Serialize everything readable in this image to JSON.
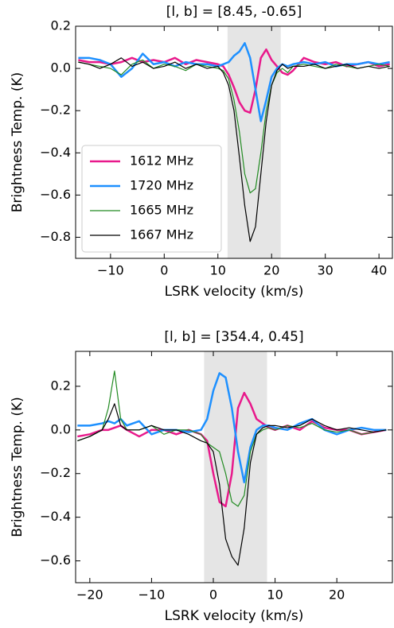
{
  "chart_data": [
    {
      "type": "line",
      "title": "[l, b] = [8.45, -0.65]",
      "x_label": "LSRK velocity (km/s)",
      "y_label": "Brightness Temp. (K)",
      "xlim": [
        -16.5,
        42.5
      ],
      "ylim": [
        -0.9,
        0.2
      ],
      "xticks": [
        {
          "value": -10,
          "label": "−10"
        },
        0,
        10,
        20,
        30,
        40
      ],
      "yticks": [
        {
          "value": -0.8,
          "label": "−0.8"
        },
        {
          "value": -0.6,
          "label": "−0.6"
        },
        {
          "value": -0.4,
          "label": "−0.4"
        },
        {
          "value": -0.2,
          "label": "−0.2"
        },
        {
          "value": 0,
          "label": "0.0"
        },
        0.2
      ],
      "shaded_xrange": [
        11.8,
        21.7
      ],
      "legend": "lower left",
      "x": [
        -16,
        -14,
        -12,
        -10,
        -8,
        -6,
        -4,
        -2,
        0,
        2,
        4,
        6,
        8,
        10,
        11,
        12,
        13,
        14,
        15,
        16,
        17,
        18,
        19,
        20,
        21,
        22,
        23,
        24,
        26,
        28,
        30,
        32,
        34,
        36,
        38,
        40,
        42
      ],
      "series": [
        {
          "name": "1612 MHz",
          "color": "#e8198b",
          "width": 2.5,
          "values": [
            0.04,
            0.03,
            0.03,
            0.02,
            0.03,
            0.05,
            0.03,
            0.04,
            0.03,
            0.05,
            0.02,
            0.04,
            0.03,
            0.02,
            0.01,
            -0.03,
            -0.09,
            -0.16,
            -0.2,
            -0.21,
            -0.1,
            0.05,
            0.09,
            0.04,
            0.01,
            -0.02,
            -0.03,
            -0.01,
            0.05,
            0.03,
            0.02,
            0.03,
            0.01,
            0.02,
            0.03,
            0.01,
            0.02
          ]
        },
        {
          "name": "1720 MHz",
          "color": "#1e90ff",
          "width": 2.5,
          "values": [
            0.05,
            0.05,
            0.04,
            0.02,
            -0.04,
            0.0,
            0.07,
            0.02,
            0.03,
            0.01,
            0.03,
            0.02,
            0.02,
            0.01,
            0.02,
            0.03,
            0.06,
            0.08,
            0.12,
            0.05,
            -0.1,
            -0.25,
            -0.15,
            -0.04,
            0.0,
            0.02,
            0.01,
            0.02,
            0.03,
            0.02,
            0.03,
            0.01,
            0.02,
            0.02,
            0.03,
            0.02,
            0.03
          ]
        },
        {
          "name": "1665 MHz",
          "color": "#228b22",
          "width": 1.2,
          "values": [
            0.03,
            0.02,
            0.01,
            0.0,
            -0.03,
            0.02,
            0.04,
            0.0,
            0.02,
            0.01,
            -0.01,
            0.02,
            0.01,
            0.0,
            -0.01,
            -0.05,
            -0.15,
            -0.3,
            -0.5,
            -0.59,
            -0.57,
            -0.4,
            -0.2,
            -0.08,
            -0.02,
            0.0,
            -0.02,
            0.01,
            0.02,
            0.01,
            0.0,
            0.02,
            0.01,
            0.0,
            0.01,
            0.02,
            0.01
          ]
        },
        {
          "name": "1667 MHz",
          "color": "#000000",
          "width": 1.2,
          "values": [
            0.03,
            0.02,
            0.0,
            0.02,
            0.05,
            0.01,
            0.03,
            0.0,
            0.01,
            0.03,
            0.0,
            0.02,
            0.0,
            0.01,
            -0.02,
            -0.08,
            -0.2,
            -0.42,
            -0.65,
            -0.82,
            -0.75,
            -0.5,
            -0.25,
            -0.08,
            -0.01,
            0.02,
            0.0,
            0.01,
            0.01,
            0.02,
            0.0,
            0.01,
            0.02,
            0.0,
            0.01,
            0.0,
            0.01
          ]
        }
      ]
    },
    {
      "type": "line",
      "title": "[l, b] = [354.4, 0.45]",
      "x_label": "LSRK velocity (km/s)",
      "y_label": "Brightness Temp. (K)",
      "xlim": [
        -22.3,
        29
      ],
      "ylim": [
        -0.7,
        0.36
      ],
      "xticks": [
        {
          "value": -20,
          "label": "−20"
        },
        {
          "value": -10,
          "label": "−10"
        },
        0,
        10,
        20
      ],
      "yticks": [
        {
          "value": -0.6,
          "label": "−0.6"
        },
        {
          "value": -0.4,
          "label": "−0.4"
        },
        {
          "value": -0.2,
          "label": "−0.2"
        },
        {
          "value": 0,
          "label": "0.0"
        },
        0.2
      ],
      "shaded_xrange": [
        -1.5,
        8.7
      ],
      "x": [
        -22,
        -20,
        -18,
        -17,
        -16,
        -15,
        -14,
        -12,
        -10,
        -8,
        -6,
        -4,
        -2,
        -1,
        0,
        1,
        2,
        3,
        4,
        5,
        6,
        7,
        8,
        9,
        10,
        12,
        14,
        16,
        18,
        20,
        22,
        24,
        26,
        28
      ],
      "series": [
        {
          "color": "#e8198b",
          "width": 2.5,
          "values": [
            -0.03,
            -0.02,
            0.0,
            0.0,
            0.01,
            0.02,
            0.0,
            -0.03,
            0.0,
            0.0,
            -0.02,
            0.0,
            -0.02,
            -0.05,
            -0.2,
            -0.33,
            -0.35,
            -0.2,
            0.1,
            0.17,
            0.12,
            0.05,
            0.03,
            0.01,
            0.0,
            0.02,
            0.0,
            0.04,
            0.01,
            0.0,
            0.0,
            -0.02,
            -0.01,
            0.0
          ]
        },
        {
          "color": "#1e90ff",
          "width": 2.5,
          "values": [
            0.02,
            0.02,
            0.03,
            0.04,
            0.03,
            0.05,
            0.02,
            0.04,
            -0.02,
            0.0,
            0.0,
            -0.01,
            0.0,
            0.05,
            0.18,
            0.26,
            0.24,
            0.1,
            -0.1,
            -0.24,
            -0.08,
            0.0,
            0.02,
            0.02,
            0.01,
            0.0,
            0.03,
            0.05,
            0.0,
            -0.02,
            0.0,
            0.01,
            0.0,
            0.0
          ]
        },
        {
          "color": "#228b22",
          "width": 1.2,
          "values": [
            -0.05,
            -0.03,
            0.0,
            0.1,
            0.27,
            0.05,
            0.0,
            0.0,
            0.02,
            -0.02,
            0.0,
            0.0,
            -0.02,
            -0.06,
            -0.08,
            -0.1,
            -0.2,
            -0.33,
            -0.35,
            -0.3,
            -0.1,
            -0.02,
            0.0,
            0.01,
            0.0,
            0.02,
            0.01,
            0.03,
            0.0,
            -0.01,
            0.0,
            -0.02,
            -0.01,
            0.0
          ]
        },
        {
          "color": "#000000",
          "width": 1.2,
          "values": [
            -0.05,
            -0.03,
            0.0,
            0.05,
            0.12,
            0.02,
            0.0,
            0.0,
            0.02,
            0.0,
            0.0,
            -0.02,
            -0.05,
            -0.06,
            -0.1,
            -0.25,
            -0.5,
            -0.58,
            -0.62,
            -0.45,
            -0.15,
            -0.02,
            0.01,
            0.02,
            0.02,
            0.01,
            0.02,
            0.05,
            0.02,
            0.0,
            0.01,
            0.0,
            -0.01,
            0.0
          ]
        }
      ]
    }
  ]
}
